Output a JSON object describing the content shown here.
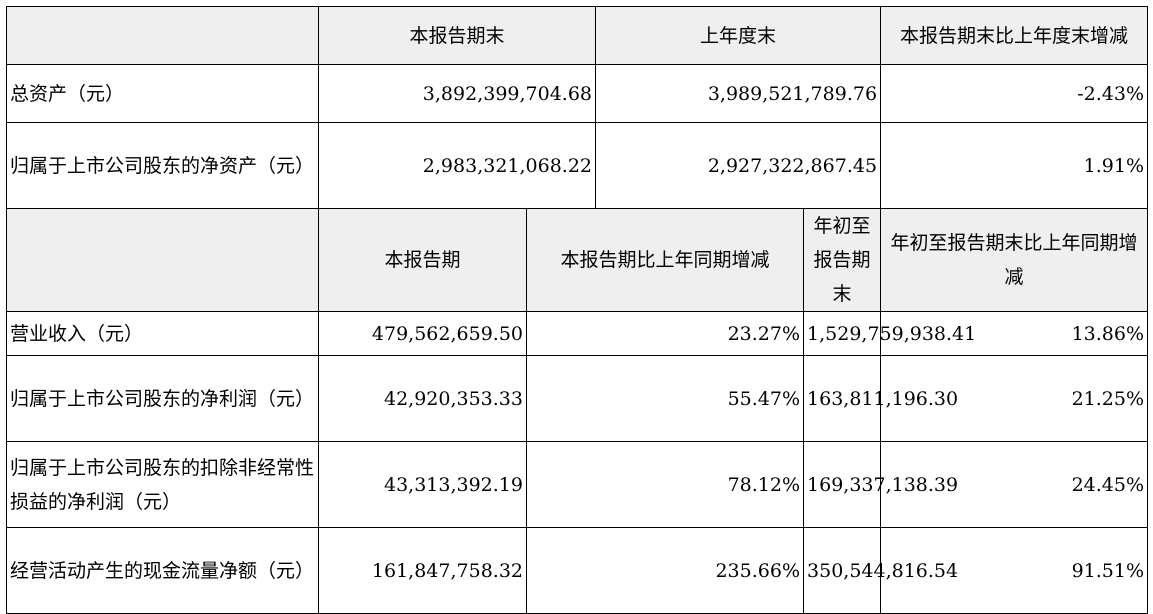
{
  "balance": {
    "headers": [
      "本报告期末",
      "上年度末",
      "本报告期末比上年度末增减"
    ],
    "rows": [
      {
        "label": "总资产（元）",
        "values": [
          "3,892,399,704.68",
          "3,989,521,789.76",
          "-2.43%"
        ]
      },
      {
        "label": "归属于上市公司股东的净资产（元）",
        "values": [
          "2,983,321,068.22",
          "2,927,322,867.45",
          "1.91%"
        ]
      }
    ]
  },
  "income": {
    "headers": [
      "本报告期",
      "本报告期比上年同期增减",
      "年初至报告期末",
      "年初至报告期末比上年同期增减"
    ],
    "rows": [
      {
        "label": "营业收入（元）",
        "values": [
          "479,562,659.50",
          "23.27%",
          "1,529,759,938.41",
          "13.86%"
        ]
      },
      {
        "label": "归属于上市公司股东的净利润（元）",
        "values": [
          "42,920,353.33",
          "55.47%",
          "163,811,196.30",
          "21.25%"
        ]
      },
      {
        "label": "归属于上市公司股东的扣除非经常性损益的净利润（元）",
        "values": [
          "43,313,392.19",
          "78.12%",
          "169,337,138.39",
          "24.45%"
        ]
      },
      {
        "label": "经营活动产生的现金流量净额（元）",
        "values": [
          "161,847,758.32",
          "235.66%",
          "350,544,816.54",
          "91.51%"
        ]
      }
    ]
  }
}
